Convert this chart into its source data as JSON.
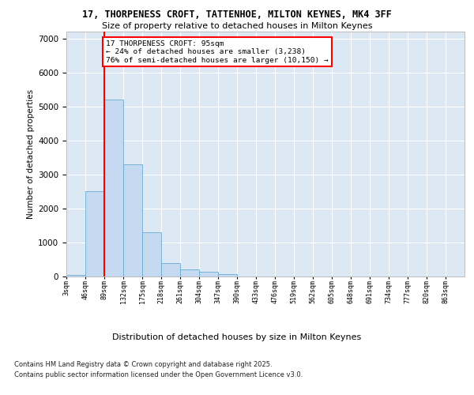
{
  "title1": "17, THORPENESS CROFT, TATTENHOE, MILTON KEYNES, MK4 3FF",
  "title2": "Size of property relative to detached houses in Milton Keynes",
  "xlabel": "Distribution of detached houses by size in Milton Keynes",
  "ylabel": "Number of detached properties",
  "bar_color": "#c5d9f0",
  "bar_edge_color": "#6aabd4",
  "bg_color": "#dce9f5",
  "grid_color": "#ffffff",
  "annotation_text": "17 THORPENESS CROFT: 95sqm\n← 24% of detached houses are smaller (3,238)\n76% of semi-detached houses are larger (10,150) →",
  "red_line_x": 89,
  "bin_left_edges": [
    3,
    46,
    89,
    132,
    175,
    218,
    261,
    304,
    347,
    390,
    433,
    476,
    519,
    562,
    605,
    648,
    691,
    734,
    777,
    820
  ],
  "bin_width": 43,
  "categories": [
    "3sqm",
    "46sqm",
    "89sqm",
    "132sqm",
    "175sqm",
    "218sqm",
    "261sqm",
    "304sqm",
    "347sqm",
    "390sqm",
    "433sqm",
    "476sqm",
    "519sqm",
    "562sqm",
    "605sqm",
    "648sqm",
    "691sqm",
    "734sqm",
    "777sqm",
    "820sqm",
    "863sqm"
  ],
  "values": [
    50,
    2500,
    5200,
    3300,
    1300,
    400,
    200,
    130,
    80,
    0,
    0,
    0,
    0,
    0,
    0,
    0,
    0,
    0,
    0,
    0
  ],
  "ylim": [
    0,
    7200
  ],
  "yticks": [
    0,
    1000,
    2000,
    3000,
    4000,
    5000,
    6000,
    7000
  ],
  "xmax": 863,
  "footnote1": "Contains HM Land Registry data © Crown copyright and database right 2025.",
  "footnote2": "Contains public sector information licensed under the Open Government Licence v3.0."
}
